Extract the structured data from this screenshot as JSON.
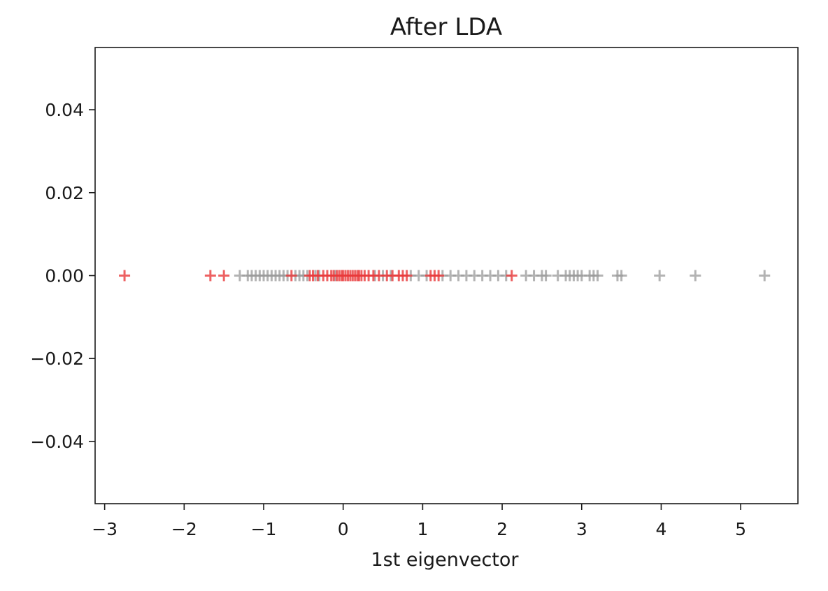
{
  "chart_data": {
    "type": "scatter",
    "title": "After LDA",
    "xlabel": "1st eigenvector",
    "ylabel": "",
    "xlim": [
      -3.12,
      5.72
    ],
    "ylim": [
      -0.055,
      0.055
    ],
    "xticks": [
      -3,
      -2,
      -1,
      0,
      1,
      2,
      3,
      4,
      5
    ],
    "xtick_labels": [
      "−3",
      "−2",
      "−1",
      "0",
      "1",
      "2",
      "3",
      "4",
      "5"
    ],
    "yticks": [
      0.04,
      0.02,
      0.0,
      -0.02,
      -0.04
    ],
    "ytick_labels": [
      "0.04",
      "0.02",
      "0.00",
      "−0.02",
      "−0.04"
    ],
    "grid": false,
    "marker": "+",
    "series": [
      {
        "color": "#e8393b",
        "opacity": 0.8,
        "x": [
          -2.75,
          -1.67,
          -1.5,
          -0.65,
          -0.42,
          -0.38,
          -0.32,
          -0.25,
          -0.2,
          -0.15,
          -0.12,
          -0.08,
          -0.05,
          -0.02,
          0.0,
          0.03,
          0.06,
          0.09,
          0.12,
          0.15,
          0.18,
          0.2,
          0.23,
          0.27,
          0.32,
          0.38,
          0.45,
          0.55,
          0.62,
          0.7,
          0.75,
          0.8,
          1.1,
          1.15,
          1.2,
          2.12
        ],
        "y": [
          0,
          0,
          0,
          0,
          0,
          0,
          0,
          0,
          0,
          0,
          0,
          0,
          0,
          0,
          0,
          0,
          0,
          0,
          0,
          0,
          0,
          0,
          0,
          0,
          0,
          0,
          0,
          0,
          0,
          0,
          0,
          0,
          0,
          0,
          0,
          0
        ]
      },
      {
        "color": "#9a9a9a",
        "opacity": 0.75,
        "x": [
          -1.3,
          -1.2,
          -1.15,
          -1.1,
          -1.05,
          -1.0,
          -0.95,
          -0.9,
          -0.85,
          -0.8,
          -0.75,
          -0.7,
          -0.6,
          -0.55,
          -0.5,
          -0.45,
          -0.35,
          -0.3,
          -0.1,
          0.4,
          0.5,
          0.6,
          0.85,
          0.95,
          1.05,
          1.25,
          1.35,
          1.45,
          1.55,
          1.65,
          1.75,
          1.85,
          1.95,
          2.05,
          2.3,
          2.4,
          2.5,
          2.55,
          2.7,
          2.8,
          2.85,
          2.9,
          2.95,
          3.0,
          3.1,
          3.15,
          3.2,
          3.45,
          3.5,
          3.98,
          4.43,
          5.3
        ],
        "y": [
          0,
          0,
          0,
          0,
          0,
          0,
          0,
          0,
          0,
          0,
          0,
          0,
          0,
          0,
          0,
          0,
          0,
          0,
          0,
          0,
          0,
          0,
          0,
          0,
          0,
          0,
          0,
          0,
          0,
          0,
          0,
          0,
          0,
          0,
          0,
          0,
          0,
          0,
          0,
          0,
          0,
          0,
          0,
          0,
          0,
          0,
          0,
          0,
          0,
          0,
          0,
          0
        ]
      }
    ]
  }
}
